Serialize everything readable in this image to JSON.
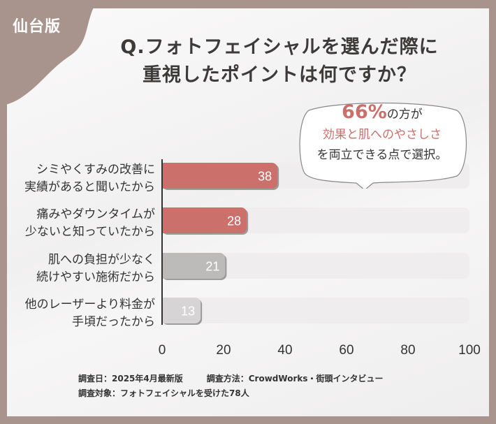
{
  "badge": "仙台版",
  "title_lines": [
    "Q.フォトフェイシャルを選んだ際に",
    "重視したポイントは何ですか？"
  ],
  "callout": {
    "percent": "66%",
    "line1_rest": "の方が",
    "line2": "効果と肌へのやさしさ",
    "line3": "を両立できる点で選択。"
  },
  "colors": {
    "frame": "#a8948d",
    "highlight": "#cc706c",
    "gray_bar": "#bdbaba",
    "light_bar": "#d6d4d4",
    "track": "#efeded"
  },
  "chart_data": {
    "type": "bar",
    "orientation": "horizontal",
    "categories": [
      [
        "シミやくすみの改善に",
        "実績があると聞いたから"
      ],
      [
        "痛みやダウンタイムが",
        "少ないと知っていたから"
      ],
      [
        "肌への負担が少なく",
        "続けやすい施術だから"
      ],
      [
        "他のレーザーより料金が",
        "手頃だったから"
      ]
    ],
    "values": [
      38,
      28,
      21,
      13
    ],
    "bar_colors": [
      "#cc706c",
      "#cc706c",
      "#bdbaba",
      "#d6d4d4"
    ],
    "xlim": [
      0,
      100
    ],
    "xticks": [
      "0",
      "20",
      "40",
      "60",
      "80",
      "100"
    ],
    "grid": false
  },
  "footer": {
    "date": "調査日：2025年4月最新版",
    "method": "調査方法：CrowdWorks・街頭インタビュー",
    "target": "調査対象：フォトフェイシャルを受けた78人"
  }
}
